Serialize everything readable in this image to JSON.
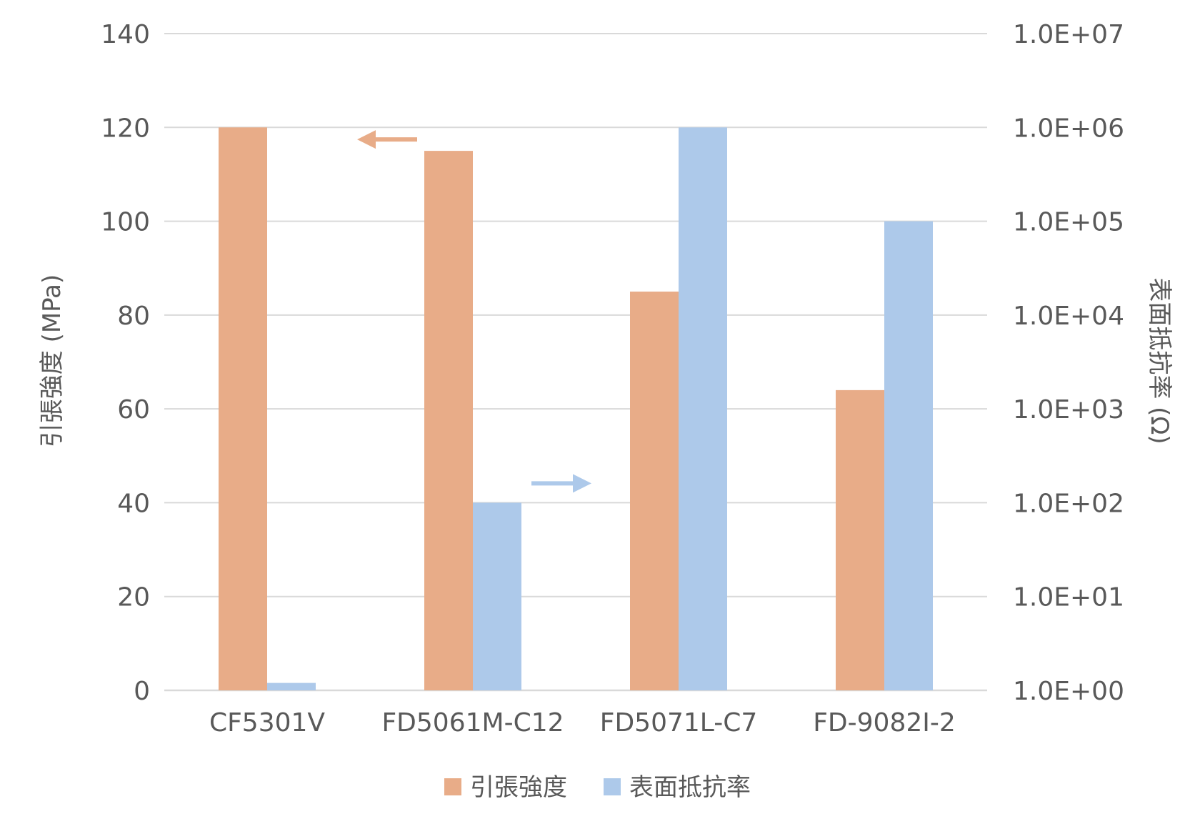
{
  "chart_data": {
    "type": "bar",
    "categories": [
      "CF5301V",
      "FD5061M-C12",
      "FD5071L-C7",
      "FD-9082I-2"
    ],
    "series": [
      {
        "name": "引張強度",
        "axis": "left",
        "color": "#E8AC88",
        "values": [
          120,
          115,
          85,
          64
        ]
      },
      {
        "name": "表面抵抗率",
        "axis": "right",
        "color": "#ADC9EA",
        "values": [
          1.2,
          100,
          1000000,
          100000
        ]
      }
    ],
    "y_left": {
      "label": "引張強度 (MPa)",
      "ylim": [
        0,
        140
      ],
      "ticks": [
        0,
        20,
        40,
        60,
        80,
        100,
        120,
        140
      ],
      "tick_labels": [
        "0",
        "20",
        "40",
        "60",
        "80",
        "100",
        "120",
        "140"
      ]
    },
    "y_right": {
      "label": "表面抵抗率 (Ω)",
      "scale": "log",
      "ylim": [
        1,
        10000000
      ],
      "ticks": [
        1,
        10,
        100,
        1000,
        10000,
        100000,
        1000000,
        10000000
      ],
      "tick_labels": [
        "1.0E+00",
        "1.0E+01",
        "1.0E+02",
        "1.0E+03",
        "1.0E+04",
        "1.0E+05",
        "1.0E+06",
        "1.0E+07"
      ]
    },
    "grid": true,
    "legend": {
      "position": "bottom"
    },
    "annotations": [
      {
        "type": "arrow",
        "direction": "left",
        "color": "#E8AC88"
      },
      {
        "type": "arrow",
        "direction": "right",
        "color": "#ADC9EA"
      }
    ]
  }
}
